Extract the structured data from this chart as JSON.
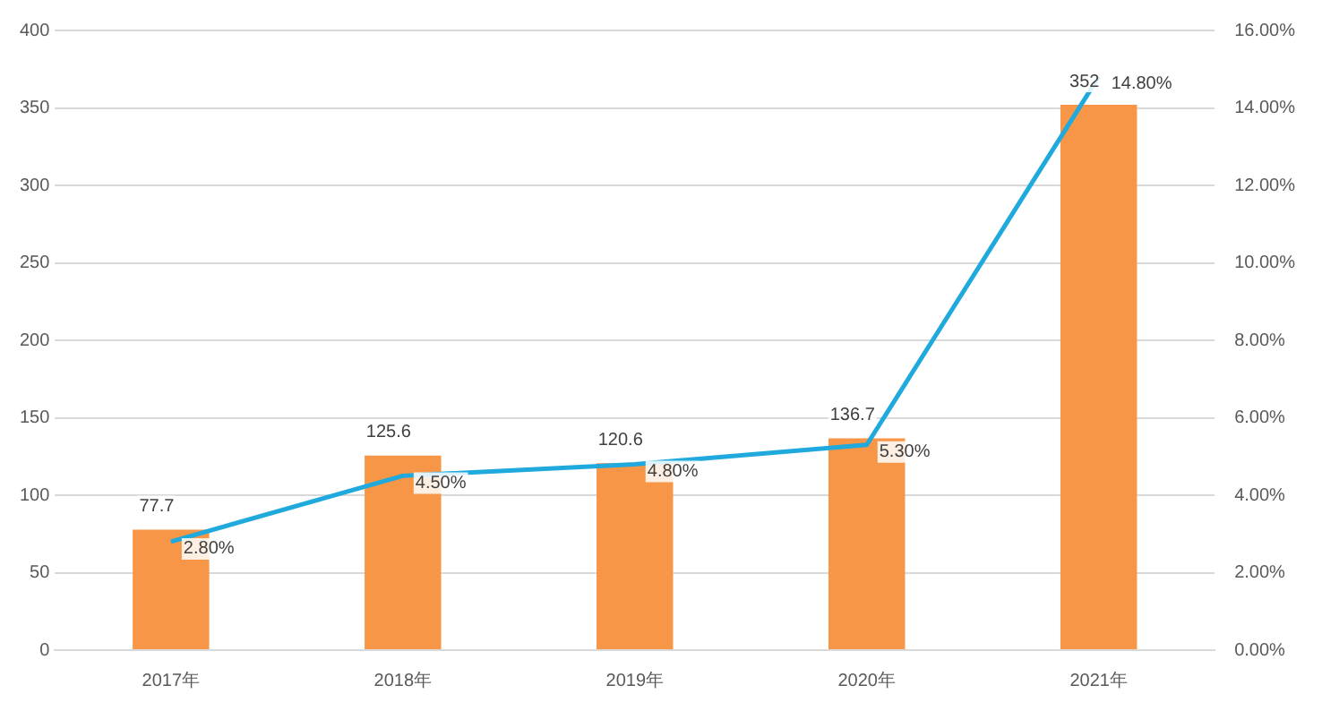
{
  "chart_data": {
    "type": "bar",
    "categories": [
      "2017年",
      "2018年",
      "2019年",
      "2020年",
      "2021年"
    ],
    "series": [
      {
        "color": "#f79646",
        "values": [
          77.7,
          125.6,
          120.6,
          136.7,
          352
        ],
        "value_labels": [
          "77.7",
          "125.6",
          "120.6",
          "136.7",
          "352"
        ]
      },
      {
        "type": "line",
        "axis": "y2",
        "color": "#1fa9dc",
        "values": [
          2.8,
          4.5,
          4.8,
          5.3,
          14.8
        ],
        "value_labels": [
          "2.80%",
          "4.50%",
          "4.80%",
          "5.30%",
          "14.80%"
        ]
      }
    ],
    "ylim": [
      0,
      400
    ],
    "yticks": [
      0,
      50,
      100,
      150,
      200,
      250,
      300,
      350,
      400
    ],
    "y2lim": [
      0,
      16
    ],
    "y2ticks": [
      {
        "value": 0,
        "label": "0.00%"
      },
      {
        "value": 2,
        "label": "2.00%"
      },
      {
        "value": 4,
        "label": "4.00%"
      },
      {
        "value": 6,
        "label": "6.00%"
      },
      {
        "value": 8,
        "label": "8.00%"
      },
      {
        "value": 10,
        "label": "10.00%"
      },
      {
        "value": 12,
        "label": "12.00%"
      },
      {
        "value": 14,
        "label": "14.00%"
      },
      {
        "value": 16,
        "label": "16.00%"
      }
    ],
    "grid": "y",
    "legend": false,
    "marker": "none",
    "line_style": "solid"
  }
}
